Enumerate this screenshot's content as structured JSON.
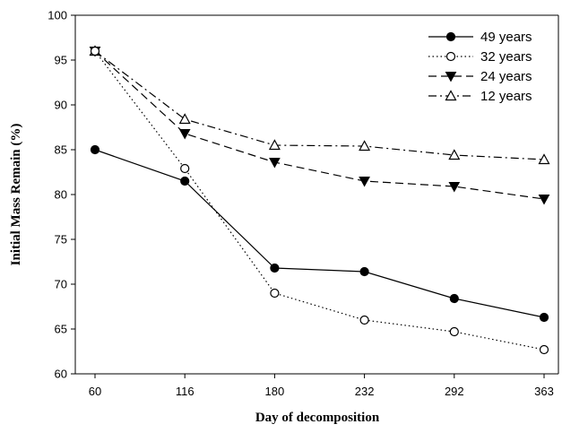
{
  "chart_data": {
    "type": "line",
    "title": "",
    "xlabel": "Day of decomposition",
    "ylabel": "Initial Mass Remain (%)",
    "categories": [
      "60",
      "116",
      "180",
      "232",
      "292",
      "363"
    ],
    "ylim": [
      60,
      100
    ],
    "yticks": [
      60,
      65,
      70,
      75,
      80,
      85,
      90,
      95,
      100
    ],
    "grid": false,
    "legend_position": "top-right",
    "series": [
      {
        "name": "49 years",
        "values": [
          85.0,
          81.5,
          71.8,
          71.4,
          68.4,
          66.3
        ],
        "marker": "circle-filled",
        "line": "solid"
      },
      {
        "name": "32 years",
        "values": [
          96.0,
          82.9,
          69.0,
          66.0,
          64.7,
          62.7
        ],
        "marker": "circle-open",
        "line": "dotted"
      },
      {
        "name": "24 years",
        "values": [
          96.0,
          86.8,
          83.6,
          81.5,
          80.9,
          79.5
        ],
        "marker": "triangle-down-filled",
        "line": "dashed"
      },
      {
        "name": "12 years",
        "values": [
          96.0,
          88.4,
          85.5,
          85.4,
          84.4,
          83.9
        ],
        "marker": "triangle-up-open",
        "line": "dash-dot"
      }
    ]
  }
}
